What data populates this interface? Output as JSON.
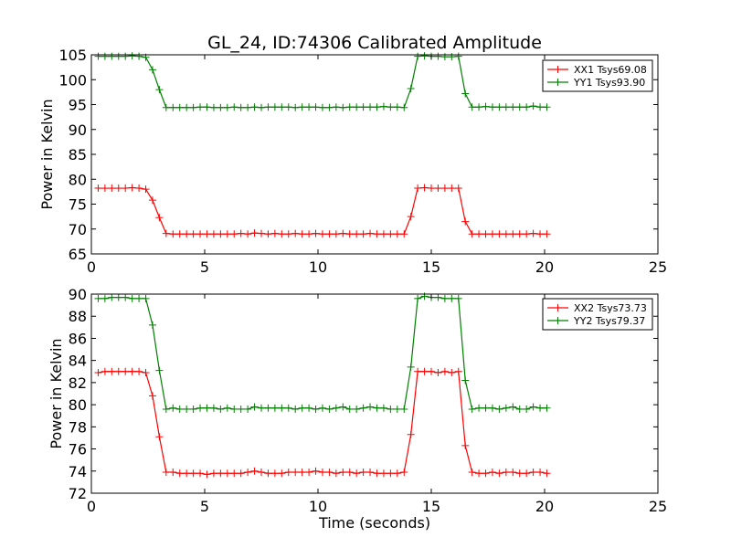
{
  "title": "GL_24, ID:74306 Calibrated Amplitude",
  "chart_data": [
    {
      "type": "line",
      "xlabel": "",
      "ylabel": "Power in Kelvin",
      "xlim": [
        0,
        25
      ],
      "ylim": [
        65,
        105
      ],
      "xticks": [
        "0",
        "5",
        "10",
        "15",
        "20",
        "25"
      ],
      "yticks": [
        "65",
        "70",
        "75",
        "80",
        "85",
        "90",
        "95",
        "100",
        "105"
      ],
      "grid": false,
      "legend_position": "top-right",
      "x": [
        0.3,
        0.6,
        0.9,
        1.2,
        1.5,
        1.8,
        2.1,
        2.4,
        2.7,
        3.0,
        3.3,
        3.6,
        3.9,
        4.2,
        4.5,
        4.8,
        5.1,
        5.4,
        5.7,
        6.0,
        6.3,
        6.6,
        6.9,
        7.2,
        7.5,
        7.8,
        8.1,
        8.4,
        8.7,
        9.0,
        9.3,
        9.6,
        9.9,
        10.2,
        10.5,
        10.8,
        11.1,
        11.4,
        11.7,
        12.0,
        12.3,
        12.6,
        12.9,
        13.2,
        13.5,
        13.8,
        14.1,
        14.4,
        14.7,
        15.0,
        15.3,
        15.6,
        15.9,
        16.2,
        16.5,
        16.8,
        17.1,
        17.4,
        17.7,
        18.0,
        18.3,
        18.6,
        18.9,
        19.2,
        19.5,
        19.8,
        20.1
      ],
      "series": [
        {
          "name": "XX1 Tsys69.08",
          "color": "#ff0000",
          "values": [
            78.2,
            78.2,
            78.2,
            78.2,
            78.2,
            78.3,
            78.2,
            78.0,
            75.8,
            72.3,
            69.1,
            69.0,
            69.0,
            69.0,
            69.0,
            69.0,
            69.0,
            69.0,
            69.0,
            69.0,
            69.0,
            69.1,
            69.0,
            69.2,
            69.1,
            69.0,
            69.1,
            69.0,
            69.0,
            69.1,
            69.0,
            69.0,
            69.1,
            69.0,
            69.0,
            69.0,
            69.1,
            69.0,
            69.0,
            69.0,
            69.1,
            69.0,
            69.0,
            69.0,
            69.0,
            69.0,
            72.5,
            78.2,
            78.3,
            78.2,
            78.2,
            78.2,
            78.2,
            78.2,
            71.5,
            69.0,
            69.0,
            69.0,
            69.0,
            69.0,
            69.0,
            69.0,
            69.0,
            69.0,
            69.1,
            69.0,
            69.0
          ]
        },
        {
          "name": "YY1 Tsys93.90",
          "color": "#008000",
          "values": [
            104.7,
            104.7,
            104.7,
            104.7,
            104.7,
            104.8,
            104.7,
            104.5,
            102.0,
            98.0,
            94.4,
            94.4,
            94.4,
            94.4,
            94.4,
            94.5,
            94.5,
            94.4,
            94.4,
            94.4,
            94.5,
            94.4,
            94.4,
            94.5,
            94.4,
            94.5,
            94.5,
            94.5,
            94.5,
            94.4,
            94.5,
            94.5,
            94.5,
            94.4,
            94.4,
            94.5,
            94.4,
            94.5,
            94.5,
            94.5,
            94.5,
            94.5,
            94.6,
            94.5,
            94.5,
            94.4,
            98.2,
            104.7,
            104.8,
            104.7,
            104.7,
            104.6,
            104.6,
            104.7,
            97.2,
            94.5,
            94.5,
            94.6,
            94.5,
            94.5,
            94.5,
            94.5,
            94.5,
            94.5,
            94.7,
            94.5,
            94.5
          ]
        }
      ]
    },
    {
      "type": "line",
      "xlabel": "Time (seconds)",
      "ylabel": "Power in Kelvin",
      "xlim": [
        0,
        25
      ],
      "ylim": [
        72,
        90
      ],
      "xticks": [
        "0",
        "5",
        "10",
        "15",
        "20",
        "25"
      ],
      "yticks": [
        "72",
        "74",
        "76",
        "78",
        "80",
        "82",
        "84",
        "86",
        "88",
        "90"
      ],
      "grid": false,
      "legend_position": "top-right",
      "x": [
        0.3,
        0.6,
        0.9,
        1.2,
        1.5,
        1.8,
        2.1,
        2.4,
        2.7,
        3.0,
        3.3,
        3.6,
        3.9,
        4.2,
        4.5,
        4.8,
        5.1,
        5.4,
        5.7,
        6.0,
        6.3,
        6.6,
        6.9,
        7.2,
        7.5,
        7.8,
        8.1,
        8.4,
        8.7,
        9.0,
        9.3,
        9.6,
        9.9,
        10.2,
        10.5,
        10.8,
        11.1,
        11.4,
        11.7,
        12.0,
        12.3,
        12.6,
        12.9,
        13.2,
        13.5,
        13.8,
        14.1,
        14.4,
        14.7,
        15.0,
        15.3,
        15.6,
        15.9,
        16.2,
        16.5,
        16.8,
        17.1,
        17.4,
        17.7,
        18.0,
        18.3,
        18.6,
        18.9,
        19.2,
        19.5,
        19.8,
        20.1
      ],
      "series": [
        {
          "name": "XX2 Tsys73.73",
          "color": "#ff0000",
          "values": [
            82.9,
            83.0,
            83.0,
            83.0,
            83.0,
            83.0,
            83.0,
            82.9,
            80.8,
            77.1,
            73.9,
            73.9,
            73.8,
            73.8,
            73.8,
            73.8,
            73.7,
            73.8,
            73.8,
            73.8,
            73.8,
            73.8,
            73.9,
            74.0,
            73.9,
            73.8,
            73.8,
            73.8,
            73.9,
            73.9,
            73.9,
            73.9,
            74.0,
            73.9,
            73.9,
            73.8,
            73.9,
            73.9,
            73.8,
            73.9,
            73.9,
            73.8,
            73.8,
            73.8,
            73.8,
            73.9,
            77.3,
            83.0,
            83.0,
            83.0,
            82.9,
            83.0,
            82.9,
            83.0,
            76.3,
            73.9,
            73.8,
            73.8,
            73.9,
            73.8,
            73.9,
            73.9,
            73.8,
            73.8,
            73.9,
            73.9,
            73.8
          ]
        },
        {
          "name": "YY2 Tsys79.37",
          "color": "#008000",
          "values": [
            89.6,
            89.6,
            89.7,
            89.7,
            89.7,
            89.6,
            89.6,
            89.6,
            87.2,
            83.1,
            79.6,
            79.7,
            79.6,
            79.6,
            79.6,
            79.7,
            79.7,
            79.7,
            79.6,
            79.7,
            79.6,
            79.6,
            79.6,
            79.8,
            79.7,
            79.7,
            79.7,
            79.7,
            79.7,
            79.6,
            79.7,
            79.7,
            79.6,
            79.7,
            79.6,
            79.7,
            79.8,
            79.6,
            79.6,
            79.7,
            79.8,
            79.7,
            79.7,
            79.6,
            79.6,
            79.6,
            83.4,
            89.6,
            89.8,
            89.7,
            89.7,
            89.6,
            89.6,
            89.6,
            82.2,
            79.6,
            79.7,
            79.7,
            79.7,
            79.6,
            79.7,
            79.8,
            79.6,
            79.6,
            79.8,
            79.7,
            79.7
          ]
        }
      ]
    }
  ]
}
